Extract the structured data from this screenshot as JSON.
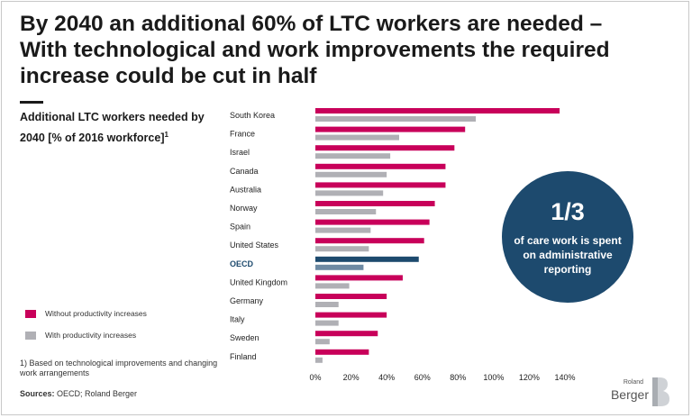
{
  "title": "By 2040 an additional 60% of LTC workers are needed – With technological and work improvements the required increase could be cut in half",
  "subtitle": "Additional LTC workers needed by 2040 [% of 2016 workforce]",
  "subtitle_footnote_mark": "1",
  "legend": [
    {
      "label": "Without productivity increases",
      "color": "#c8005a"
    },
    {
      "label": "With productivity increases",
      "color": "#b0b0b5"
    }
  ],
  "footnote": "1) Based on technological improvements and changing work arrangements",
  "sources_label": "Sources:",
  "sources_text": " OECD; Roland Berger",
  "callout": {
    "big": "1/3",
    "small": "of care work is spent on administrative reporting",
    "color": "#1d4a6e"
  },
  "logo": {
    "top": "Roland",
    "bottom": "Berger"
  },
  "chart_data": {
    "type": "bar",
    "orientation": "horizontal",
    "categories": [
      "South Korea",
      "France",
      "Israel",
      "Canada",
      "Australia",
      "Norway",
      "Spain",
      "United States",
      "OECD",
      "United Kingdom",
      "Germany",
      "Italy",
      "Sweden",
      "Finland"
    ],
    "highlight_category": "OECD",
    "highlight_color": "#1d4a6e",
    "series": [
      {
        "name": "Without productivity increases",
        "color": "#c8005a",
        "values": [
          137,
          84,
          78,
          73,
          73,
          67,
          64,
          61,
          58,
          49,
          40,
          40,
          35,
          30
        ]
      },
      {
        "name": "With productivity increases",
        "color": "#b0b0b5",
        "values": [
          90,
          47,
          42,
          40,
          38,
          34,
          31,
          30,
          27,
          19,
          13,
          13,
          8,
          4
        ]
      }
    ],
    "xlim": [
      0,
      140
    ],
    "xticks": [
      0,
      20,
      40,
      60,
      80,
      100,
      120,
      140
    ],
    "xtick_suffix": "%",
    "grid": false
  }
}
